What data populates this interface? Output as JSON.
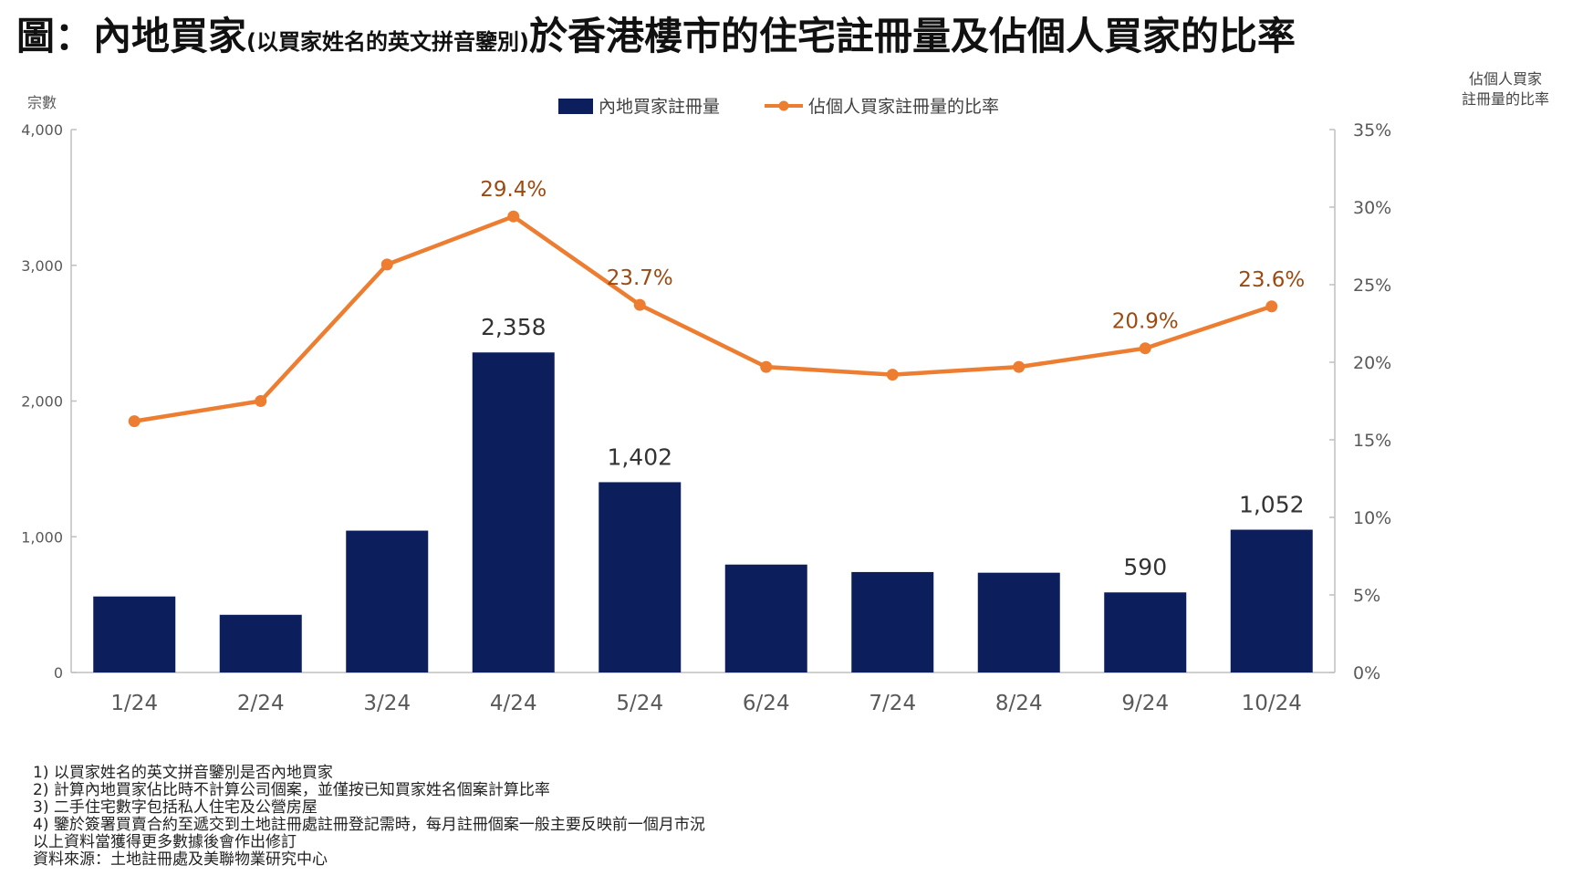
{
  "title": {
    "main_prefix": "圖：內地買家",
    "sub": "(以買家姓名的英文拼音鑒別)",
    "main_suffix": "於香港樓市的住宅註冊量及佔個人買家的比率"
  },
  "chart_data": {
    "type": "bar+line",
    "categories": [
      "1/24",
      "2/24",
      "3/24",
      "4/24",
      "5/24",
      "6/24",
      "7/24",
      "8/24",
      "9/24",
      "10/24"
    ],
    "series": [
      {
        "name": "內地買家註冊量",
        "type": "bar",
        "axis": "left",
        "values": [
          560,
          425,
          1045,
          2358,
          1402,
          795,
          740,
          735,
          590,
          1052
        ],
        "labels": [
          "",
          "",
          "",
          "2,358",
          "1,402",
          "",
          "",
          "",
          "590",
          "1,052"
        ],
        "color": "#0c1f5c"
      },
      {
        "name": "佔個人買家註冊量的比率",
        "type": "line",
        "axis": "right",
        "values": [
          16.2,
          17.5,
          26.3,
          29.4,
          23.7,
          19.7,
          19.2,
          19.7,
          20.9,
          23.6
        ],
        "labels": [
          "",
          "",
          "",
          "29.4%",
          "23.7%",
          "",
          "",
          "",
          "20.9%",
          "23.6%"
        ],
        "color": "#ed7d31",
        "label_color": "#9c4a12"
      }
    ],
    "left_axis": {
      "title": "宗數",
      "range": [
        0,
        4000
      ],
      "ticks": [
        0,
        1000,
        2000,
        3000,
        4000
      ],
      "tick_labels": [
        "0",
        "1,000",
        "2,000",
        "3,000",
        "4,000"
      ]
    },
    "right_axis": {
      "title_line1": "佔個人買家",
      "title_line2": "註冊量的比率",
      "range": [
        0,
        35
      ],
      "ticks": [
        0,
        5,
        10,
        15,
        20,
        25,
        30,
        35
      ],
      "tick_labels": [
        "0%",
        "5%",
        "10%",
        "15%",
        "20%",
        "25%",
        "30%",
        "35%"
      ]
    },
    "legend_position": "top-center",
    "grid": false
  },
  "footnotes": [
    "1) 以買家姓名的英文拼音鑒別是否內地買家",
    "2) 計算內地買家佔比時不計算公司個案，並僅按已知買家姓名個案計算比率",
    "3) 二手住宅數字包括私人住宅及公營房屋",
    "4) 鑒於簽署買賣合約至遞交到土地註冊處註冊登記需時，每月註冊個案一般主要反映前一個月市況",
    "以上資料當獲得更多數據後會作出修訂",
    "資料來源：土地註冊處及美聯物業研究中心"
  ]
}
